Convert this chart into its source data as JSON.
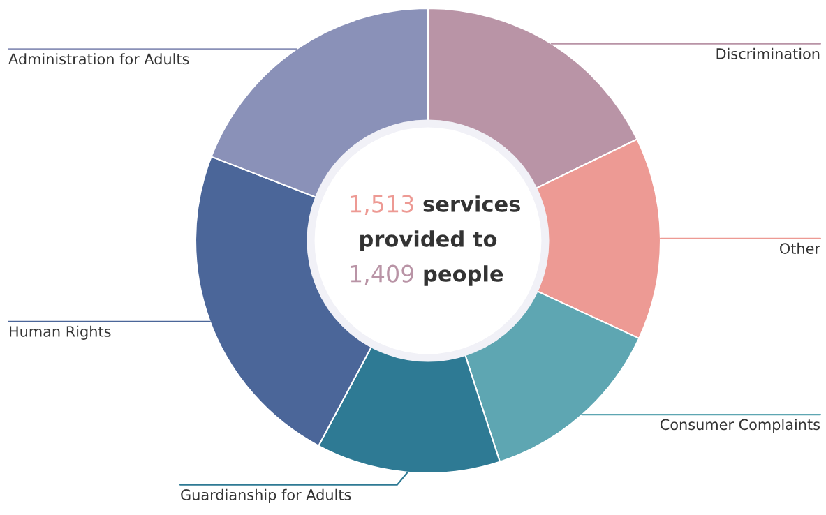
{
  "chart_data": {
    "type": "donut",
    "categories": [
      "Discrimination",
      "Other",
      "Consumer Complaints",
      "Guardianship for Adults",
      "Human Rights",
      "Administration for Adults"
    ],
    "values": [
      17.8,
      14.1,
      13.1,
      12.8,
      23.1,
      19.1
    ],
    "colors": [
      "#b994a6",
      "#ed9a94",
      "#5ea6b2",
      "#2e7a94",
      "#4b6699",
      "#8a91b8"
    ],
    "annotations": [
      "1,513 services",
      "provided to",
      "1,409 people"
    ]
  }
}
